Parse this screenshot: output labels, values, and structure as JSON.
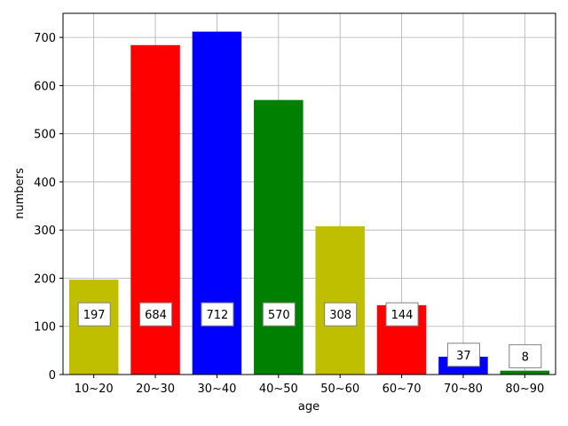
{
  "chart_data": {
    "type": "bar",
    "categories": [
      "10~20",
      "20~30",
      "30~40",
      "40~50",
      "50~60",
      "60~70",
      "70~80",
      "80~90"
    ],
    "values": [
      197,
      684,
      712,
      570,
      308,
      144,
      37,
      8
    ],
    "data_labels": [
      "197",
      "684",
      "712",
      "570",
      "308",
      "144",
      "37",
      "8"
    ],
    "bar_colors": [
      "#bfbf00",
      "#ff0000",
      "#0000ff",
      "#008000",
      "#bfbf00",
      "#ff0000",
      "#0000ff",
      "#008000"
    ],
    "title": "",
    "xlabel": "age",
    "ylabel": "numbers",
    "ylim": [
      0,
      750
    ],
    "yticks": [
      0,
      100,
      200,
      300,
      400,
      500,
      600,
      700
    ],
    "ytick_labels": [
      "0",
      "100",
      "200",
      "300",
      "400",
      "500",
      "600",
      "700"
    ],
    "grid": true,
    "label_box_values": [
      125,
      125,
      125,
      125,
      125,
      125,
      41,
      38
    ]
  }
}
